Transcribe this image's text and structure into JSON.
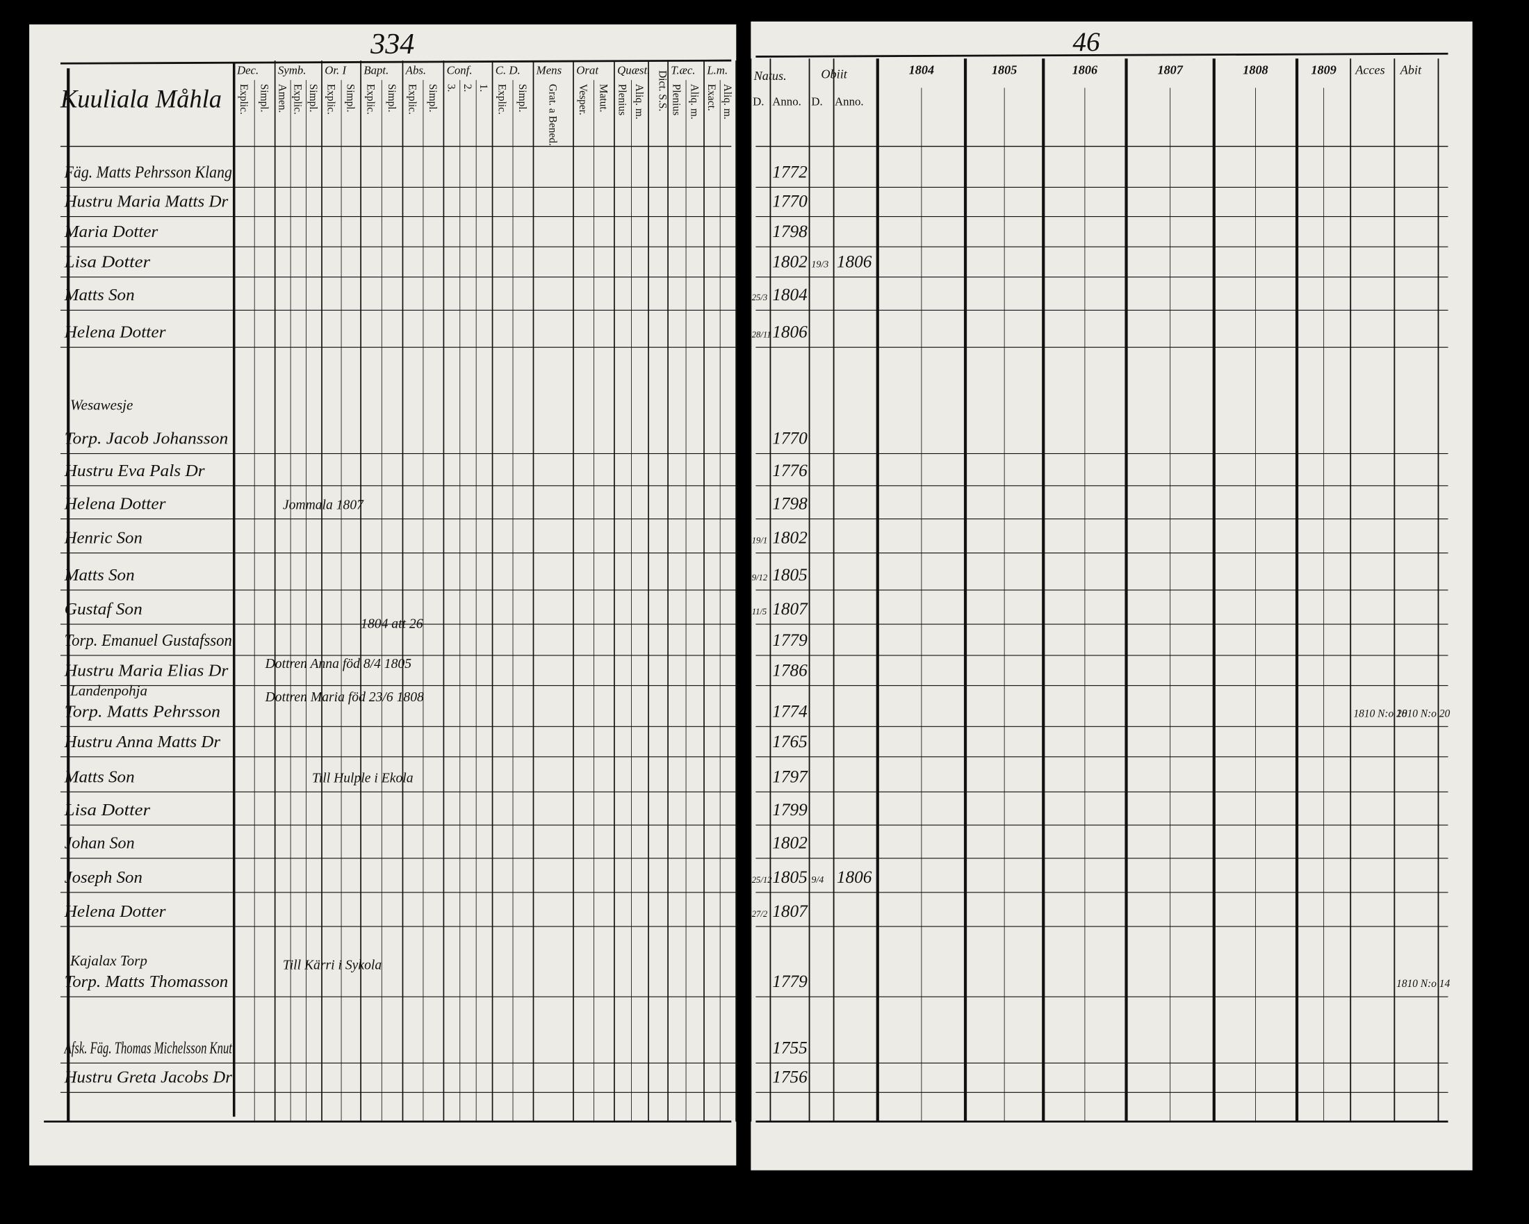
{
  "left_page": {
    "page_number": "334",
    "parish": "Kuuliala Måhla",
    "columns": [
      {
        "label": "Dec.",
        "sub": [
          "Explic.",
          "Simpl."
        ]
      },
      {
        "label": "Symb.",
        "sub": [
          "Amen.",
          "Explic.",
          "Simpl."
        ]
      },
      {
        "label": "Or. I",
        "sub": [
          "Explic.",
          "Simpl."
        ]
      },
      {
        "label": "Bapt.",
        "sub": [
          "Explic.",
          "Simpl."
        ]
      },
      {
        "label": "Abs.",
        "sub": [
          "Explic.",
          "Simpl."
        ]
      },
      {
        "label": "Conf.",
        "sub": [
          "3.",
          "2.",
          "1."
        ]
      },
      {
        "label": "C. D.",
        "sub": [
          "Explic.",
          "Simpl."
        ]
      },
      {
        "label": "Mens",
        "sub": [
          "Grat. a Bened."
        ]
      },
      {
        "label": "Orat",
        "sub": [
          "Vesper.",
          "Matut."
        ]
      },
      {
        "label": "Quæst.",
        "sub": [
          "Plenius",
          "Aliq. m."
        ]
      },
      {
        "label": "Dict. S.S.",
        "sub": []
      },
      {
        "label": "T.æc.",
        "sub": [
          "Plenius",
          "Aliq. m."
        ]
      },
      {
        "label": "L.m.",
        "sub": [
          "Exact.",
          "Aliq. m."
        ]
      }
    ]
  },
  "right_page": {
    "page_number": "46",
    "natus": {
      "label": "Natus.",
      "sub": [
        "D.",
        "Anno."
      ]
    },
    "obiit": {
      "label": "Obiit",
      "sub": [
        "D.",
        "Anno."
      ]
    },
    "years": [
      "1804",
      "1805",
      "1806",
      "1807",
      "1808",
      "1809"
    ],
    "acces": "Acces",
    "abit": "Abit"
  },
  "rows": [
    {
      "name": "Fäg. Matts Pehrsson Klang",
      "natus_year": "1772"
    },
    {
      "name": "Hustru Maria Matts Dr",
      "natus_year": "1770"
    },
    {
      "name": "Maria Dotter",
      "natus_year": "1798"
    },
    {
      "name": "Lisa Dotter",
      "natus_year": "1802",
      "obiit_day": "19/3",
      "obiit_year": "1806"
    },
    {
      "name": "Matts Son",
      "natus_day": "25/3",
      "natus_year": "1804"
    },
    {
      "name": "Helena Dotter",
      "natus_day": "28/11",
      "natus_year": "1806"
    },
    {
      "section": "Wesawesje"
    },
    {
      "name": "Torp. Jacob Johansson",
      "natus_year": "1770"
    },
    {
      "name": "Hustru Eva Pals Dr",
      "natus_year": "1776"
    },
    {
      "name": "Helena Dotter",
      "natus_year": "1798",
      "note": "Jommala 1807"
    },
    {
      "name": "Henric Son",
      "natus_day": "19/1",
      "natus_year": "1802"
    },
    {
      "name": "Matts Son",
      "natus_day": "9/12",
      "natus_year": "1805"
    },
    {
      "name": "Gustaf Son",
      "natus_day": "11/5",
      "natus_year": "1807"
    },
    {
      "name": "Torp. Emanuel Gustafsson",
      "natus_year": "1779",
      "note": "1804 att 26"
    },
    {
      "name": "Hustru Maria Elias Dr",
      "natus_year": "1786",
      "note": "Dottren Anna föd 8/4 1805"
    },
    {
      "section": "Landenpohja"
    },
    {
      "name": "Torp. Matts Pehrsson",
      "natus_year": "1774",
      "note": "Dottren Maria föd 23/6 1808",
      "acces": "1810 N:o 20",
      "abit": "1810 N:o 20"
    },
    {
      "name": "Hustru Anna Matts Dr",
      "natus_year": "1765"
    },
    {
      "name": "Matts Son",
      "natus_year": "1797",
      "note": "Till Hulple i Ekola"
    },
    {
      "name": "Lisa Dotter",
      "natus_year": "1799"
    },
    {
      "name": "Johan Son",
      "natus_year": "1802"
    },
    {
      "name": "Joseph Son",
      "natus_day": "25/12",
      "natus_year": "1805",
      "obiit_day": "9/4",
      "obiit_year": "1806"
    },
    {
      "name": "Helena Dotter",
      "natus_day": "27/2",
      "natus_year": "1807"
    },
    {
      "section": "Kajalax Torp"
    },
    {
      "name": "Torp. Matts Thomasson",
      "natus_year": "1779",
      "note": "Till Kärri i Sykola",
      "abit": "1810 N:o 14"
    },
    {
      "name": "Afsk. Fäg. Thomas Michelsson Knut",
      "natus_year": "1755"
    },
    {
      "name": "Hustru Greta Jacobs Dr",
      "natus_year": "1756"
    }
  ]
}
